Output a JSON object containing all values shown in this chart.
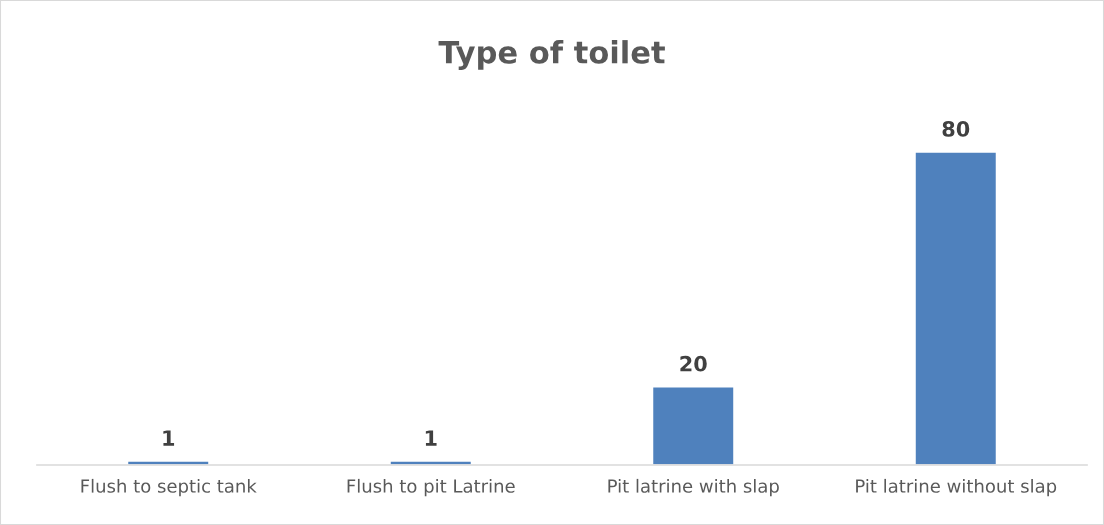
{
  "chart_data": {
    "type": "bar",
    "title": "Type of toilet",
    "categories": [
      "Flush to septic tank",
      "Flush to pit Latrine",
      "Pit latrine with slap",
      "Pit latrine without slap"
    ],
    "values": [
      1,
      1,
      20,
      80
    ],
    "color": "#4f81bd",
    "data_labels": true,
    "grid": false,
    "legend": false
  }
}
